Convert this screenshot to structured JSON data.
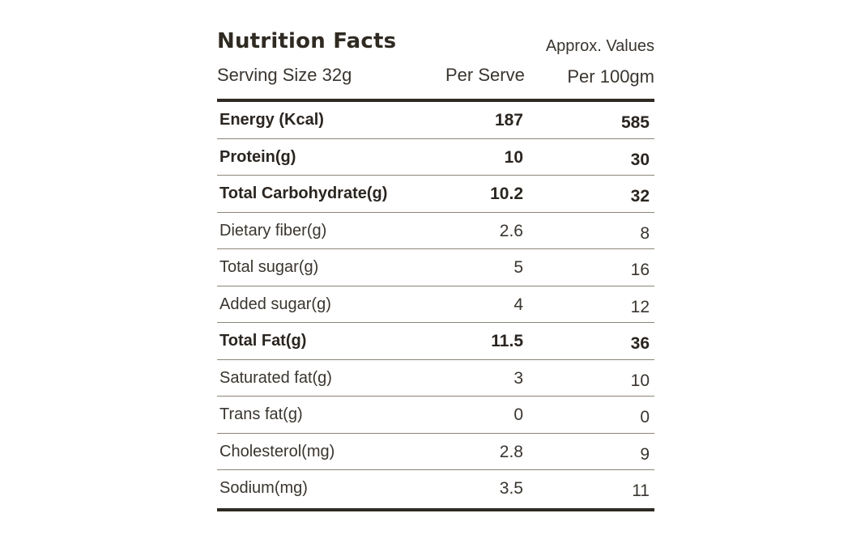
{
  "label": {
    "title": "Nutrition Facts",
    "approx": "Approx. Values",
    "serving_size": "Serving Size 32g",
    "col_per_serve": "Per Serve",
    "col_per_100": "Per 100gm"
  },
  "rows": [
    {
      "name": "Energy (Kcal)",
      "per_serve": "187",
      "per_100": "585",
      "bold": true
    },
    {
      "name": "Protein(g)",
      "per_serve": "10",
      "per_100": "30",
      "bold": true
    },
    {
      "name": "Total Carbohydrate(g)",
      "per_serve": "10.2",
      "per_100": "32",
      "bold": true
    },
    {
      "name": "Dietary fiber(g)",
      "per_serve": "2.6",
      "per_100": "8",
      "bold": false
    },
    {
      "name": "Total sugar(g)",
      "per_serve": "5",
      "per_100": "16",
      "bold": false
    },
    {
      "name": "Added sugar(g)",
      "per_serve": "4",
      "per_100": "12",
      "bold": false
    },
    {
      "name": "Total Fat(g)",
      "per_serve": "11.5",
      "per_100": "36",
      "bold": true
    },
    {
      "name": "Saturated fat(g)",
      "per_serve": "3",
      "per_100": "10",
      "bold": false
    },
    {
      "name": "Trans fat(g)",
      "per_serve": "0",
      "per_100": "0",
      "bold": false
    },
    {
      "name": "Cholesterol(mg)",
      "per_serve": "2.8",
      "per_100": "9",
      "bold": false
    },
    {
      "name": "Sodium(mg)",
      "per_serve": "3.5",
      "per_100": "11",
      "bold": false
    }
  ]
}
